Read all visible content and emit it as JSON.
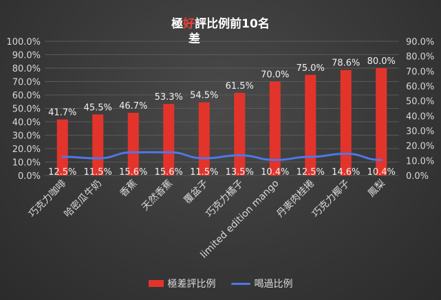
{
  "chart_data": {
    "type": "bar",
    "title": {
      "prefix": "極",
      "struck": "好",
      "rest": "評比例前10名",
      "note": "差"
    },
    "categories": [
      "巧克力咖啡",
      "哈密瓜牛奶",
      "香蕉",
      "天然香蕉",
      "覆盆子",
      "巧克力橘子",
      "limited edition mango",
      "丹麥肉桂捲",
      "巧克力椰子",
      "鳳梨"
    ],
    "series": [
      {
        "name": "極差評比例",
        "type": "bar",
        "axis": "left",
        "color": "#e3342b",
        "values": [
          41.7,
          45.5,
          46.7,
          53.3,
          54.5,
          61.5,
          70.0,
          75.0,
          78.6,
          80.0
        ],
        "labels": [
          "41.7%",
          "45.5%",
          "46.7%",
          "53.3%",
          "54.5%",
          "61.5%",
          "70.0%",
          "75.0%",
          "78.6%",
          "80.0%"
        ]
      },
      {
        "name": "喝過比例",
        "type": "line",
        "axis": "right",
        "color": "#4d79e8",
        "values": [
          12.5,
          11.5,
          15.6,
          15.6,
          11.5,
          13.5,
          10.4,
          12.5,
          14.6,
          10.4
        ],
        "labels": [
          "12.5%",
          "11.5%",
          "15.6%",
          "15.6%",
          "11.5%",
          "13.5%",
          "10.4%",
          "12.5%",
          "14.6%",
          "10.4%"
        ]
      }
    ],
    "bar_heights_note": "bars drawn to left axis (0-100%); line drawn to right axis (0-90%)",
    "y_left": {
      "min": 0,
      "max": 100,
      "step": 10,
      "ticks": [
        "0.0%",
        "10.0%",
        "20.0%",
        "30.0%",
        "40.0%",
        "50.0%",
        "60.0%",
        "70.0%",
        "80.0%",
        "90.0%",
        "100.0%"
      ]
    },
    "y_right": {
      "min": 0,
      "max": 90,
      "step": 10,
      "ticks": [
        "0.0%",
        "10.0%",
        "20.0%",
        "30.0%",
        "40.0%",
        "50.0%",
        "60.0%",
        "70.0%",
        "80.0%",
        "90.0%"
      ]
    },
    "legend_position": "bottom",
    "grid": true
  }
}
